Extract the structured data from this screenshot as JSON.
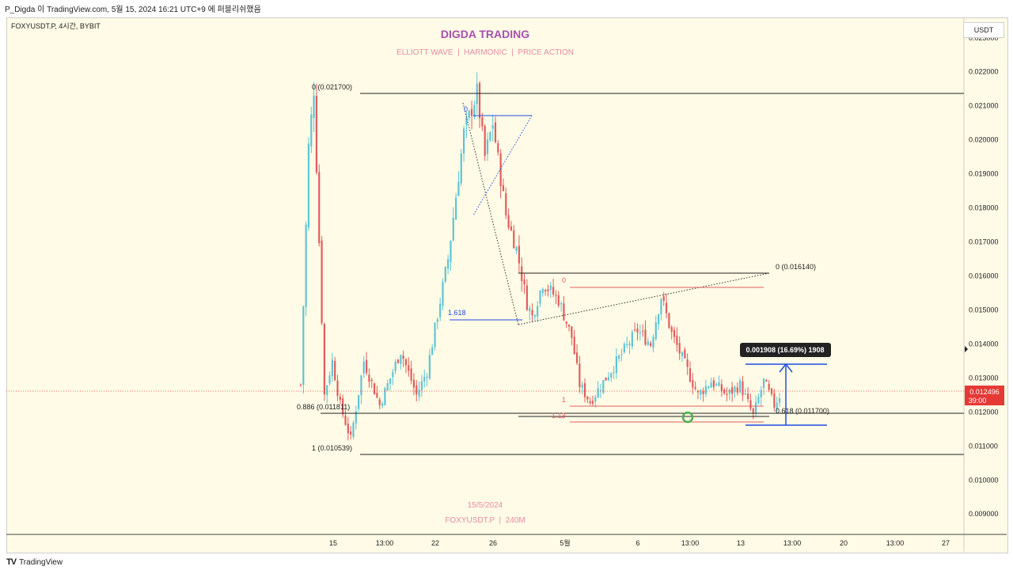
{
  "header": {
    "title": "P_Digda 이 TradingView.com, 5월 15, 2024 16:21 UTC+9 에 퍼블리쉬했음"
  },
  "symbol_info": "FOXYUSDT.P, 4시간, BYBIT",
  "currency_label": "USDT",
  "branding": {
    "title": "DIGDA TRADING",
    "subtitle": "ELLIOTT WAVE  |  HARMONIC  |  PRICE ACTION",
    "date": "15/5/2024",
    "pair": "FOXYUSDT.P  |  240M"
  },
  "footer": {
    "logo_mark": "TV",
    "logo_text": "TradingView"
  },
  "colors": {
    "background": "#fffbe6",
    "up": "#5ec4d6",
    "down": "#e05d5d",
    "level_line": "#222222",
    "blue_tool": "#1f4de0",
    "red_tool": "#e05d5d",
    "title": "#a84fb0",
    "subtitle": "#e78ba6",
    "price_tag": "#e53935",
    "circle": "#4caf50"
  },
  "chart_data": {
    "type": "candlestick",
    "title": "DIGDA TRADING",
    "ylim": [
      0.0084,
      0.0236
    ],
    "y_ticks": [
      "0.023000",
      "0.022000",
      "0.021000",
      "0.020000",
      "0.019000",
      "0.018000",
      "0.017000",
      "0.016000",
      "0.015000",
      "0.014000",
      "0.013000",
      "0.012000",
      "0.011000",
      "0.010000",
      "0.009000"
    ],
    "x_ticks": [
      "15",
      "13:00",
      "22",
      "26",
      "5월",
      "6",
      "13:00",
      "13",
      "13:00",
      "20",
      "13:00",
      "27"
    ],
    "current_price": {
      "price": "0.012496",
      "countdown": "39:00"
    },
    "measure_label": "0.001908 (16.69%) 1908",
    "fib_levels": [
      {
        "label": "0 (0.021700)",
        "value": 0.0217
      },
      {
        "label": "0.886 (0.011811)",
        "value": 0.011811
      },
      {
        "label": "1 (0.010539)",
        "value": 0.010539
      },
      {
        "label": "0 (0.016140)",
        "value": 0.01614
      },
      {
        "label": "0.618 (0.011700)",
        "value": 0.0117
      }
    ],
    "pattern_labels": [
      "0",
      "1.618",
      "0",
      "1",
      "1.13"
    ],
    "price_anchors": [
      {
        "t": 0,
        "price": 0.0128
      },
      {
        "t": 3,
        "price": 0.0198
      },
      {
        "t": 5,
        "price": 0.0215
      },
      {
        "t": 9,
        "price": 0.0125
      },
      {
        "t": 12,
        "price": 0.0135
      },
      {
        "t": 15,
        "price": 0.0122
      },
      {
        "t": 19,
        "price": 0.0112
      },
      {
        "t": 24,
        "price": 0.0135
      },
      {
        "t": 30,
        "price": 0.0122
      },
      {
        "t": 38,
        "price": 0.0138
      },
      {
        "t": 44,
        "price": 0.0125
      },
      {
        "t": 48,
        "price": 0.0132
      },
      {
        "t": 56,
        "price": 0.0165
      },
      {
        "t": 62,
        "price": 0.0202
      },
      {
        "t": 67,
        "price": 0.0214
      },
      {
        "t": 70,
        "price": 0.0195
      },
      {
        "t": 73,
        "price": 0.0205
      },
      {
        "t": 78,
        "price": 0.0178
      },
      {
        "t": 82,
        "price": 0.0168
      },
      {
        "t": 86,
        "price": 0.0152
      },
      {
        "t": 88,
        "price": 0.0148
      },
      {
        "t": 92,
        "price": 0.0158
      },
      {
        "t": 98,
        "price": 0.0153
      },
      {
        "t": 103,
        "price": 0.0142
      },
      {
        "t": 106,
        "price": 0.0128
      },
      {
        "t": 110,
        "price": 0.0123
      },
      {
        "t": 116,
        "price": 0.013
      },
      {
        "t": 122,
        "price": 0.0137
      },
      {
        "t": 128,
        "price": 0.0144
      },
      {
        "t": 133,
        "price": 0.014
      },
      {
        "t": 137,
        "price": 0.0154
      },
      {
        "t": 141,
        "price": 0.0143
      },
      {
        "t": 146,
        "price": 0.0134
      },
      {
        "t": 151,
        "price": 0.0125
      },
      {
        "t": 156,
        "price": 0.0129
      },
      {
        "t": 162,
        "price": 0.0125
      },
      {
        "t": 167,
        "price": 0.0128
      },
      {
        "t": 172,
        "price": 0.0119
      },
      {
        "t": 176,
        "price": 0.0129
      },
      {
        "t": 180,
        "price": 0.0122
      },
      {
        "t": 182,
        "price": 0.01249
      }
    ]
  }
}
